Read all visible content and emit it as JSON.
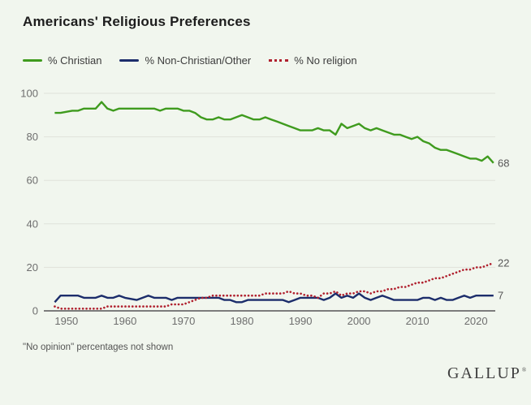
{
  "title": "Americans' Religious Preferences",
  "legend": [
    {
      "label": "% Christian",
      "color": "#3f9b1e",
      "style": "solid"
    },
    {
      "label": "% Non-Christian/Other",
      "color": "#1c2d6b",
      "style": "solid"
    },
    {
      "label": "% No religion",
      "color": "#b0202e",
      "style": "dotted"
    }
  ],
  "footnote": "\"No opinion\" percentages not shown",
  "footer": {
    "logo": "GALLUP",
    "trademark": "®"
  },
  "colors": {
    "background": "#f1f6ee",
    "grid": "#dfe2da",
    "axis": "#7c7c7c",
    "tick_text": "#6e6e6e",
    "end_label_text": "#565656"
  },
  "chart_data": {
    "type": "line",
    "title": "Americans' Religious Preferences",
    "xlabel": "",
    "ylabel": "",
    "xlim": [
      1946,
      2024
    ],
    "ylim": [
      0,
      100
    ],
    "x_ticks": [
      1950,
      1960,
      1970,
      1980,
      1990,
      2000,
      2010,
      2020
    ],
    "y_ticks": [
      0,
      20,
      40,
      60,
      80,
      100
    ],
    "grid": "horizontal",
    "legend_position": "top-left",
    "series": [
      {
        "id": "christian",
        "name": "% Christian",
        "color": "#3f9b1e",
        "dash": "solid",
        "end_label": "68",
        "points": [
          [
            1948,
            91
          ],
          [
            1949,
            91
          ],
          [
            1951,
            92
          ],
          [
            1952,
            92
          ],
          [
            1953,
            93
          ],
          [
            1954,
            93
          ],
          [
            1955,
            93
          ],
          [
            1956,
            96
          ],
          [
            1957,
            93
          ],
          [
            1958,
            92
          ],
          [
            1959,
            93
          ],
          [
            1960,
            93
          ],
          [
            1962,
            93
          ],
          [
            1964,
            93
          ],
          [
            1965,
            93
          ],
          [
            1966,
            92
          ],
          [
            1967,
            93
          ],
          [
            1968,
            93
          ],
          [
            1969,
            93
          ],
          [
            1970,
            92
          ],
          [
            1971,
            92
          ],
          [
            1972,
            91
          ],
          [
            1973,
            89
          ],
          [
            1974,
            88
          ],
          [
            1975,
            88
          ],
          [
            1976,
            89
          ],
          [
            1977,
            88
          ],
          [
            1978,
            88
          ],
          [
            1979,
            89
          ],
          [
            1980,
            90
          ],
          [
            1981,
            89
          ],
          [
            1982,
            88
          ],
          [
            1983,
            88
          ],
          [
            1984,
            89
          ],
          [
            1985,
            88
          ],
          [
            1986,
            87
          ],
          [
            1987,
            86
          ],
          [
            1988,
            85
          ],
          [
            1989,
            84
          ],
          [
            1990,
            83
          ],
          [
            1991,
            83
          ],
          [
            1992,
            83
          ],
          [
            1993,
            84
          ],
          [
            1994,
            83
          ],
          [
            1995,
            83
          ],
          [
            1996,
            81
          ],
          [
            1997,
            86
          ],
          [
            1998,
            84
          ],
          [
            1999,
            85
          ],
          [
            2000,
            86
          ],
          [
            2001,
            84
          ],
          [
            2002,
            83
          ],
          [
            2003,
            84
          ],
          [
            2004,
            83
          ],
          [
            2005,
            82
          ],
          [
            2006,
            81
          ],
          [
            2007,
            81
          ],
          [
            2008,
            80
          ],
          [
            2009,
            79
          ],
          [
            2010,
            80
          ],
          [
            2011,
            78
          ],
          [
            2012,
            77
          ],
          [
            2013,
            75
          ],
          [
            2014,
            74
          ],
          [
            2015,
            74
          ],
          [
            2016,
            73
          ],
          [
            2017,
            72
          ],
          [
            2018,
            71
          ],
          [
            2019,
            70
          ],
          [
            2020,
            70
          ],
          [
            2021,
            69
          ],
          [
            2022,
            71
          ],
          [
            2023,
            68
          ]
        ]
      },
      {
        "id": "non-christian-other",
        "name": "% Non-Christian/Other",
        "color": "#1c2d6b",
        "dash": "solid",
        "end_label": "7",
        "points": [
          [
            1948,
            4
          ],
          [
            1949,
            7
          ],
          [
            1951,
            7
          ],
          [
            1952,
            7
          ],
          [
            1953,
            6
          ],
          [
            1954,
            6
          ],
          [
            1955,
            6
          ],
          [
            1956,
            7
          ],
          [
            1957,
            6
          ],
          [
            1958,
            6
          ],
          [
            1959,
            7
          ],
          [
            1960,
            6
          ],
          [
            1962,
            5
          ],
          [
            1964,
            7
          ],
          [
            1965,
            6
          ],
          [
            1966,
            6
          ],
          [
            1967,
            6
          ],
          [
            1968,
            5
          ],
          [
            1969,
            6
          ],
          [
            1970,
            6
          ],
          [
            1972,
            6
          ],
          [
            1974,
            6
          ],
          [
            1975,
            6
          ],
          [
            1976,
            6
          ],
          [
            1977,
            5
          ],
          [
            1978,
            5
          ],
          [
            1979,
            4
          ],
          [
            1980,
            4
          ],
          [
            1981,
            5
          ],
          [
            1982,
            5
          ],
          [
            1983,
            5
          ],
          [
            1984,
            5
          ],
          [
            1985,
            5
          ],
          [
            1986,
            5
          ],
          [
            1987,
            5
          ],
          [
            1988,
            4
          ],
          [
            1989,
            5
          ],
          [
            1990,
            6
          ],
          [
            1991,
            6
          ],
          [
            1992,
            6
          ],
          [
            1993,
            6
          ],
          [
            1994,
            5
          ],
          [
            1995,
            6
          ],
          [
            1996,
            8
          ],
          [
            1997,
            6
          ],
          [
            1998,
            7
          ],
          [
            1999,
            6
          ],
          [
            2000,
            8
          ],
          [
            2001,
            6
          ],
          [
            2002,
            5
          ],
          [
            2003,
            6
          ],
          [
            2004,
            7
          ],
          [
            2005,
            6
          ],
          [
            2006,
            5
          ],
          [
            2007,
            5
          ],
          [
            2008,
            5
          ],
          [
            2009,
            5
          ],
          [
            2010,
            5
          ],
          [
            2011,
            6
          ],
          [
            2012,
            6
          ],
          [
            2013,
            5
          ],
          [
            2014,
            6
          ],
          [
            2015,
            5
          ],
          [
            2016,
            5
          ],
          [
            2017,
            6
          ],
          [
            2018,
            7
          ],
          [
            2019,
            6
          ],
          [
            2020,
            7
          ],
          [
            2021,
            7
          ],
          [
            2022,
            7
          ],
          [
            2023,
            7
          ]
        ]
      },
      {
        "id": "no-religion",
        "name": "% No religion",
        "color": "#b0202e",
        "dash": "dotted",
        "end_label": "22",
        "points": [
          [
            1948,
            2
          ],
          [
            1949,
            1
          ],
          [
            1951,
            1
          ],
          [
            1952,
            1
          ],
          [
            1953,
            1
          ],
          [
            1954,
            1
          ],
          [
            1955,
            1
          ],
          [
            1956,
            1
          ],
          [
            1957,
            2
          ],
          [
            1958,
            2
          ],
          [
            1959,
            2
          ],
          [
            1960,
            2
          ],
          [
            1962,
            2
          ],
          [
            1964,
            2
          ],
          [
            1965,
            2
          ],
          [
            1966,
            2
          ],
          [
            1967,
            2
          ],
          [
            1968,
            3
          ],
          [
            1969,
            3
          ],
          [
            1970,
            3
          ],
          [
            1971,
            4
          ],
          [
            1972,
            5
          ],
          [
            1973,
            6
          ],
          [
            1974,
            6
          ],
          [
            1975,
            7
          ],
          [
            1976,
            7
          ],
          [
            1977,
            7
          ],
          [
            1978,
            7
          ],
          [
            1979,
            7
          ],
          [
            1980,
            7
          ],
          [
            1981,
            7
          ],
          [
            1982,
            7
          ],
          [
            1983,
            7
          ],
          [
            1984,
            8
          ],
          [
            1985,
            8
          ],
          [
            1986,
            8
          ],
          [
            1987,
            8
          ],
          [
            1988,
            9
          ],
          [
            1989,
            8
          ],
          [
            1990,
            8
          ],
          [
            1991,
            7
          ],
          [
            1992,
            7
          ],
          [
            1993,
            6
          ],
          [
            1994,
            8
          ],
          [
            1995,
            8
          ],
          [
            1996,
            9
          ],
          [
            1997,
            7
          ],
          [
            1998,
            8
          ],
          [
            1999,
            8
          ],
          [
            2000,
            9
          ],
          [
            2001,
            9
          ],
          [
            2002,
            8
          ],
          [
            2003,
            9
          ],
          [
            2004,
            9
          ],
          [
            2005,
            10
          ],
          [
            2006,
            10
          ],
          [
            2007,
            11
          ],
          [
            2008,
            11
          ],
          [
            2009,
            12
          ],
          [
            2010,
            13
          ],
          [
            2011,
            13
          ],
          [
            2012,
            14
          ],
          [
            2013,
            15
          ],
          [
            2014,
            15
          ],
          [
            2015,
            16
          ],
          [
            2016,
            17
          ],
          [
            2017,
            18
          ],
          [
            2018,
            19
          ],
          [
            2019,
            19
          ],
          [
            2020,
            20
          ],
          [
            2021,
            20
          ],
          [
            2022,
            21
          ],
          [
            2023,
            22
          ]
        ]
      }
    ]
  }
}
